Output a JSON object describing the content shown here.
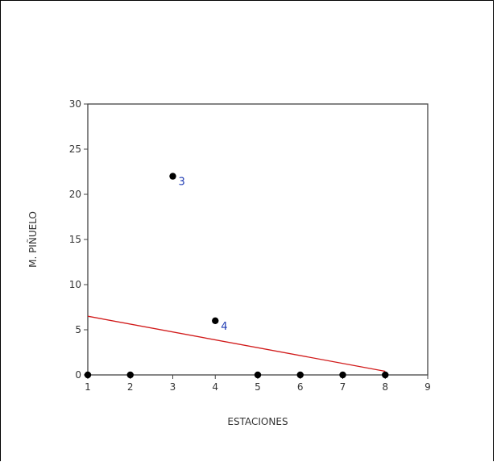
{
  "chart_data": {
    "type": "scatter",
    "title": "",
    "xlabel": "ESTACIONES",
    "ylabel": "M. PIÑUELO",
    "xlim": [
      1,
      9
    ],
    "ylim": [
      0,
      30
    ],
    "x_ticks": [
      "1",
      "2",
      "3",
      "4",
      "5",
      "6",
      "7",
      "8",
      "9"
    ],
    "y_ticks": [
      "0",
      "5",
      "10",
      "15",
      "20",
      "25",
      "30"
    ],
    "grid": false,
    "legend": "none",
    "points": [
      {
        "x": 1,
        "y": 0,
        "label": ""
      },
      {
        "x": 2,
        "y": 0,
        "label": ""
      },
      {
        "x": 3,
        "y": 22,
        "label": "3"
      },
      {
        "x": 4,
        "y": 6,
        "label": "4"
      },
      {
        "x": 5,
        "y": 0,
        "label": ""
      },
      {
        "x": 6,
        "y": 0,
        "label": ""
      },
      {
        "x": 7,
        "y": 0,
        "label": ""
      },
      {
        "x": 8,
        "y": 0,
        "label": ""
      }
    ],
    "fit_line": {
      "x": [
        1,
        8
      ],
      "y": [
        6.5,
        0.4
      ]
    },
    "colors": {
      "point": "#000000",
      "point_label": "#1f3bb3",
      "fit_line": "#d11a1a",
      "axis": "#444444"
    }
  }
}
